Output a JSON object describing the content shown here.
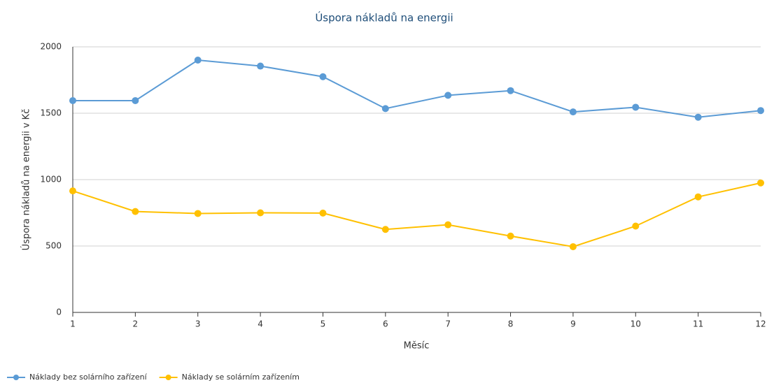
{
  "chart_data": {
    "type": "line",
    "title": "Úspora nákladů na energii",
    "x_label": "Měsíc",
    "y_label": "Úspora nákladů na energii v Kč",
    "x": [
      1,
      2,
      3,
      4,
      5,
      6,
      7,
      8,
      9,
      10,
      11,
      12
    ],
    "series": [
      {
        "name": "Náklady bez solárního zařízení",
        "color": "#5b9bd5",
        "values": [
          1595,
          1595,
          1900,
          1855,
          1775,
          1535,
          1635,
          1670,
          1510,
          1545,
          1470,
          1520
        ]
      },
      {
        "name": "Náklady se solárním zařízením",
        "color": "#ffc000",
        "values": [
          915,
          760,
          745,
          750,
          748,
          625,
          660,
          575,
          495,
          650,
          870,
          975
        ]
      }
    ],
    "xlim": [
      1,
      12
    ],
    "xticks": [
      1,
      2,
      3,
      4,
      5,
      6,
      7,
      8,
      9,
      10,
      11,
      12
    ],
    "ylim": [
      0,
      2000
    ],
    "yticks": [
      0,
      500,
      1000,
      1500,
      2000
    ],
    "grid": true,
    "legend": "bottom-left"
  }
}
